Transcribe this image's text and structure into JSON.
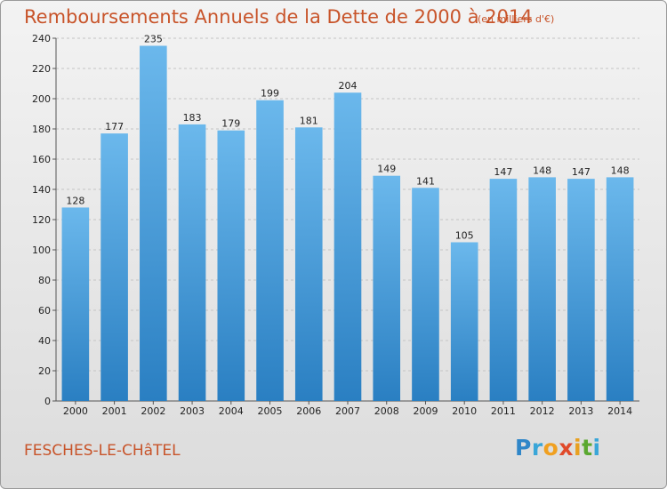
{
  "title": "Remboursements Annuels de la Dette de 2000 à 2014",
  "unit": "(en milliers d'€)",
  "commune": "FESCHES-LE-CHâTEL",
  "logo": [
    "P",
    "r",
    "o",
    "x",
    "i",
    "t",
    "i"
  ],
  "colors": {
    "bar_light": "#6bb8ec",
    "bar_dark": "#2a7fc2",
    "title": "#c8542a"
  },
  "chart_data": {
    "type": "bar",
    "title": "Remboursements Annuels de la Dette de 2000 à 2014",
    "categories": [
      "2000",
      "2001",
      "2002",
      "2003",
      "2004",
      "2005",
      "2006",
      "2007",
      "2008",
      "2009",
      "2010",
      "2011",
      "2012",
      "2013",
      "2014"
    ],
    "values": [
      128,
      177,
      235,
      183,
      179,
      199,
      181,
      204,
      149,
      141,
      105,
      147,
      148,
      147,
      148
    ],
    "yticks": [
      0,
      20,
      40,
      60,
      80,
      100,
      120,
      140,
      160,
      180,
      200,
      220,
      240
    ],
    "ylim": [
      0,
      240
    ],
    "grid": true,
    "legend": "none"
  }
}
